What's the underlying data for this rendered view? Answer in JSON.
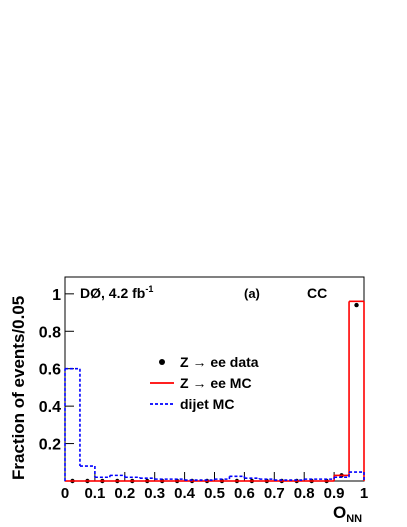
{
  "chart_data": {
    "type": "histogram",
    "annotations": [
      {
        "text": "DØ, 4.2 fb",
        "sup": "-1"
      },
      {
        "text": "(a)"
      },
      {
        "text": "CC"
      }
    ],
    "x_label": {
      "text": "O",
      "sub": "NN"
    },
    "y_label": "Fraction of events/0.05",
    "bins": [
      0,
      0.05,
      0.1,
      0.15,
      0.2,
      0.25,
      0.3,
      0.35,
      0.4,
      0.45,
      0.5,
      0.55,
      0.6,
      0.65,
      0.7,
      0.75,
      0.8,
      0.85,
      0.9,
      0.95,
      1
    ],
    "series": [
      {
        "name": "Z → ee data",
        "color": "#000000",
        "style": "points",
        "values": [
          0,
          0,
          0,
          0,
          0,
          0,
          0,
          0,
          0,
          0,
          0,
          0,
          0,
          0,
          0,
          0,
          0,
          0,
          0.03,
          0.94
        ]
      },
      {
        "name": "Z → ee MC",
        "color": "#ff0000",
        "style": "solid",
        "values": [
          0,
          0,
          0,
          0,
          0,
          0,
          0,
          0,
          0,
          0,
          0,
          0,
          0,
          0,
          0,
          0,
          0,
          0,
          0.03,
          0.96
        ]
      },
      {
        "name": "dijet MC",
        "color": "#0000ff",
        "style": "dashed",
        "values": [
          0.6,
          0.08,
          0.02,
          0.03,
          0.02,
          0.015,
          0.01,
          0.01,
          0.005,
          0.005,
          0.01,
          0.025,
          0.015,
          0.01,
          0.005,
          0.005,
          0.01,
          0.01,
          0.02,
          0.048
        ]
      }
    ],
    "xlim": [
      0,
      1
    ],
    "ylim": [
      0,
      1.09
    ],
    "xticks": [
      0,
      0.1,
      0.2,
      0.3,
      0.4,
      0.5,
      0.6,
      0.7,
      0.8,
      0.9,
      1
    ],
    "yticks": [
      0.2,
      0.4,
      0.6,
      0.8,
      1
    ]
  }
}
